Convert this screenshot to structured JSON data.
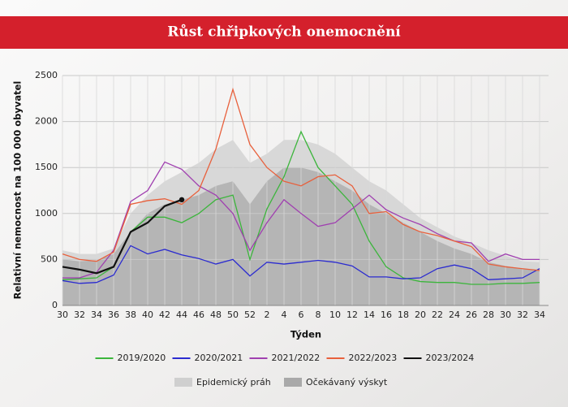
{
  "chart_data": {
    "type": "line",
    "title": "Růst chřipkových onemocnění",
    "x_label": "Týden",
    "y_label": "Relativní nemocnost na 100 000 obyvatel",
    "categories": [
      "30",
      "32",
      "34",
      "36",
      "38",
      "40",
      "42",
      "44",
      "46",
      "48",
      "50",
      "52",
      "2",
      "4",
      "6",
      "8",
      "10",
      "12",
      "14",
      "16",
      "18",
      "20",
      "22",
      "24",
      "26",
      "28",
      "30",
      "32",
      "34"
    ],
    "ylim": [
      0,
      2500
    ],
    "yticks": [
      0,
      500,
      1000,
      1500,
      2000,
      2500
    ],
    "grid": true,
    "areas": [
      {
        "name": "Epidemický práh",
        "color": "#cfcfcf",
        "values": [
          600,
          560,
          560,
          620,
          1000,
          1200,
          1350,
          1450,
          1550,
          1700,
          1800,
          1550,
          1650,
          1800,
          1800,
          1750,
          1650,
          1500,
          1350,
          1250,
          1100,
          950,
          850,
          750,
          680,
          600,
          540,
          480,
          470
        ]
      },
      {
        "name": "Očekávaný výskyt",
        "color": "#a9a9a9",
        "values": [
          500,
          480,
          490,
          560,
          800,
          1000,
          1100,
          1150,
          1200,
          1300,
          1350,
          1100,
          1350,
          1500,
          1500,
          1450,
          1350,
          1250,
          1100,
          1000,
          900,
          800,
          700,
          620,
          560,
          470,
          430,
          400,
          390
        ]
      }
    ],
    "series": [
      {
        "name": "2019/2020",
        "color": "#3cb53c",
        "values": [
          280,
          290,
          300,
          420,
          800,
          960,
          960,
          900,
          1000,
          1150,
          1200,
          500,
          1050,
          1400,
          1890,
          1500,
          1300,
          1100,
          700,
          420,
          300,
          260,
          250,
          250,
          230,
          230,
          240,
          240,
          250
        ]
      },
      {
        "name": "2020/2021",
        "color": "#2b2bd0",
        "values": [
          270,
          240,
          250,
          330,
          650,
          560,
          610,
          550,
          510,
          450,
          500,
          320,
          470,
          450,
          470,
          490,
          470,
          430,
          310,
          310,
          290,
          300,
          400,
          440,
          400,
          280,
          290,
          300,
          400
        ]
      },
      {
        "name": "2021/2022",
        "color": "#a040b0",
        "values": [
          300,
          300,
          360,
          600,
          1130,
          1250,
          1560,
          1480,
          1300,
          1200,
          1000,
          600,
          900,
          1150,
          1000,
          860,
          900,
          1050,
          1200,
          1040,
          950,
          880,
          780,
          700,
          680,
          480,
          560,
          500,
          500
        ]
      },
      {
        "name": "2022/2023",
        "color": "#e8603c",
        "values": [
          560,
          500,
          480,
          580,
          1100,
          1140,
          1160,
          1100,
          1250,
          1700,
          2350,
          1750,
          1500,
          1350,
          1300,
          1400,
          1420,
          1300,
          1000,
          1020,
          880,
          800,
          760,
          700,
          640,
          450,
          420,
          400,
          380
        ]
      },
      {
        "name": "2023/2024",
        "color": "#111111",
        "values": [
          420,
          390,
          350,
          420,
          800,
          900,
          1080,
          1150,
          null,
          null,
          null,
          null,
          null,
          null,
          null,
          null,
          null,
          null,
          null,
          null,
          null,
          null,
          null,
          null,
          null,
          null,
          null,
          null,
          null
        ]
      }
    ]
  }
}
